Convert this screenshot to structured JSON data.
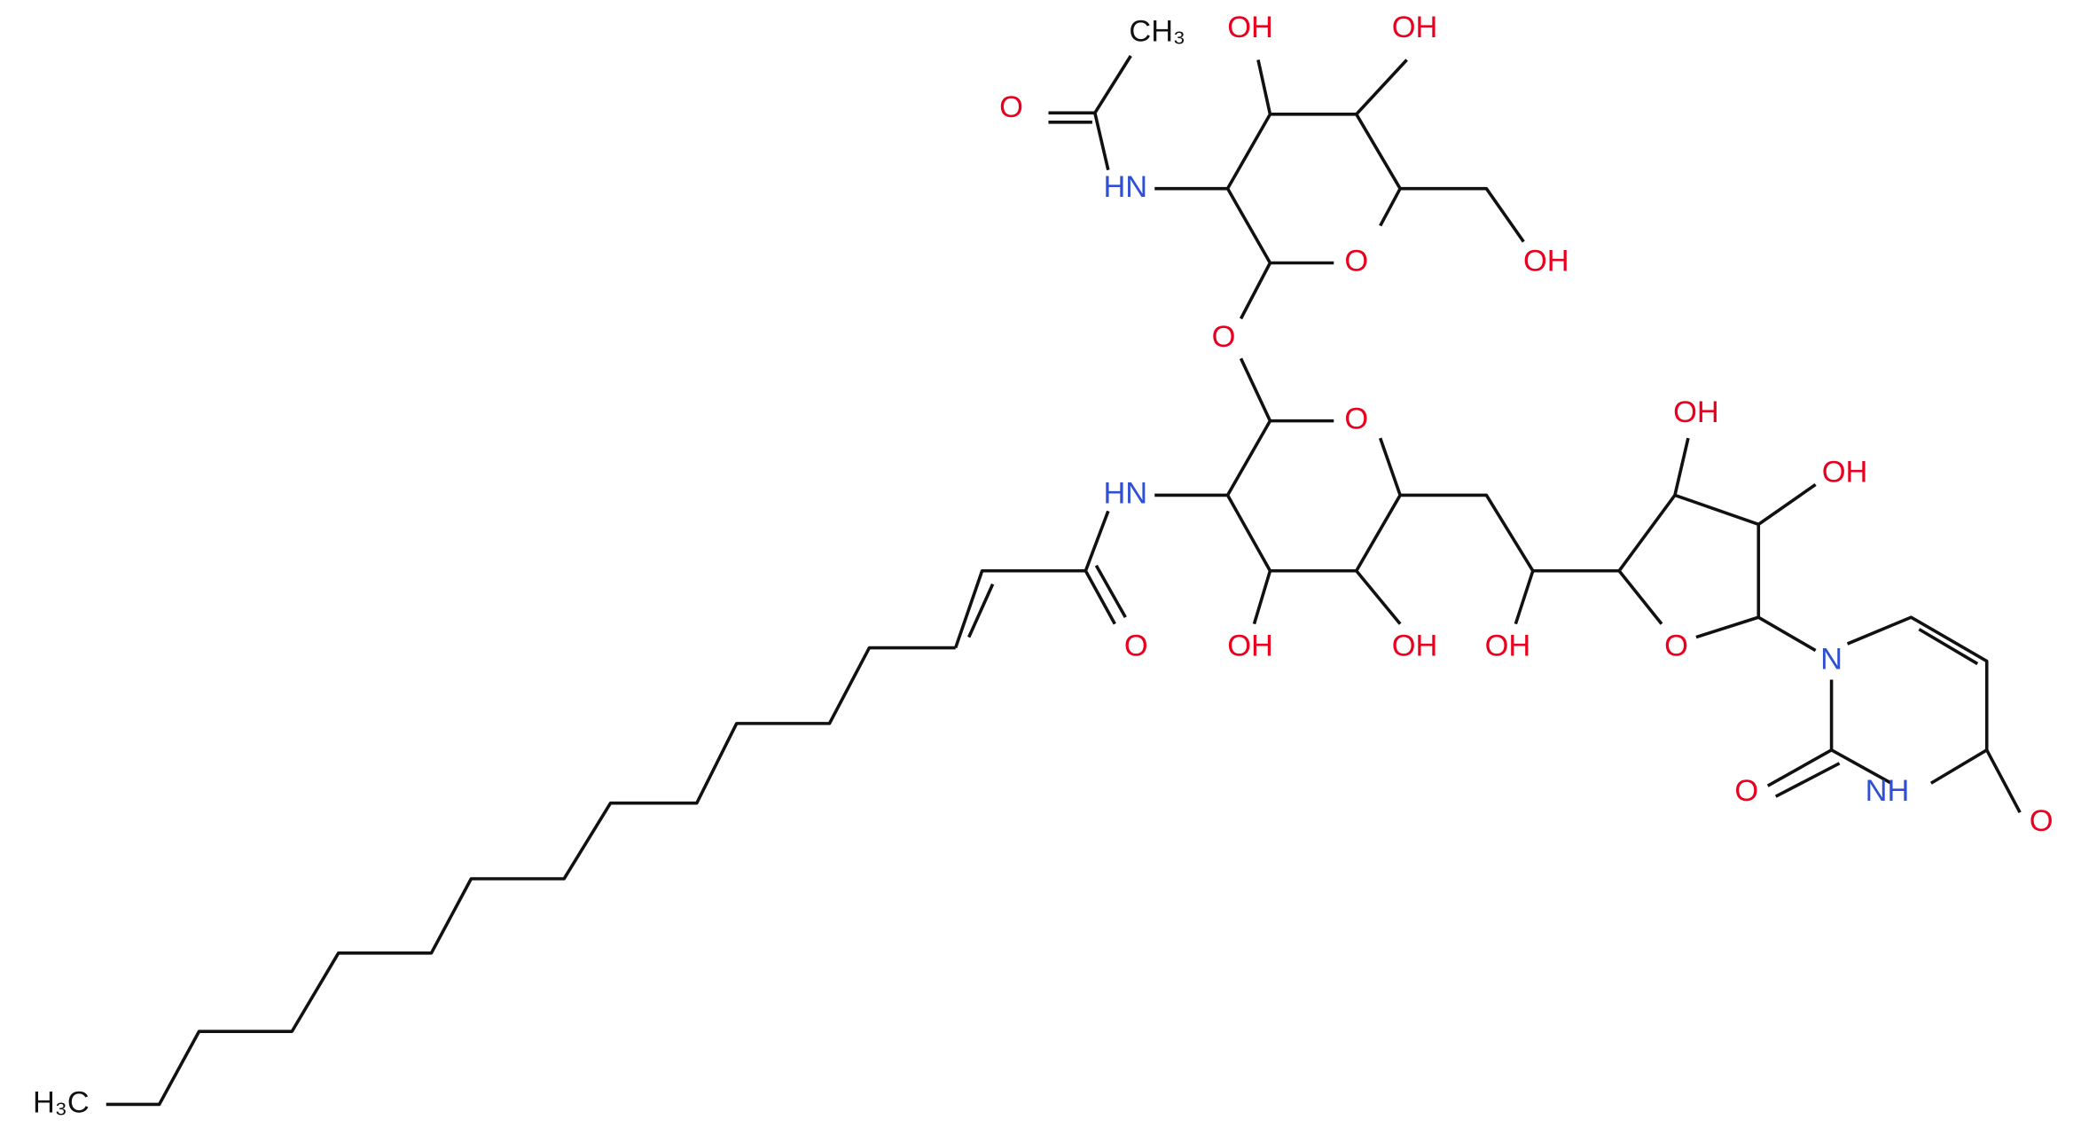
{
  "atoms": [
    {
      "label": "CH₃"
    },
    {
      "label": "O"
    },
    {
      "label": "HN"
    },
    {
      "label": "OH"
    },
    {
      "label": "OH"
    },
    {
      "label": "O"
    },
    {
      "label": "OH"
    },
    {
      "label": "O"
    },
    {
      "label": "O"
    },
    {
      "label": "HN"
    },
    {
      "label": "OH"
    },
    {
      "label": "OH"
    },
    {
      "label": "OH"
    },
    {
      "label": "O"
    },
    {
      "label": "OH"
    },
    {
      "label": "OH"
    },
    {
      "label": "O"
    },
    {
      "label": "N"
    },
    {
      "label": "O"
    },
    {
      "label": "NH"
    },
    {
      "label": "O"
    },
    {
      "label": "H₃C"
    }
  ]
}
